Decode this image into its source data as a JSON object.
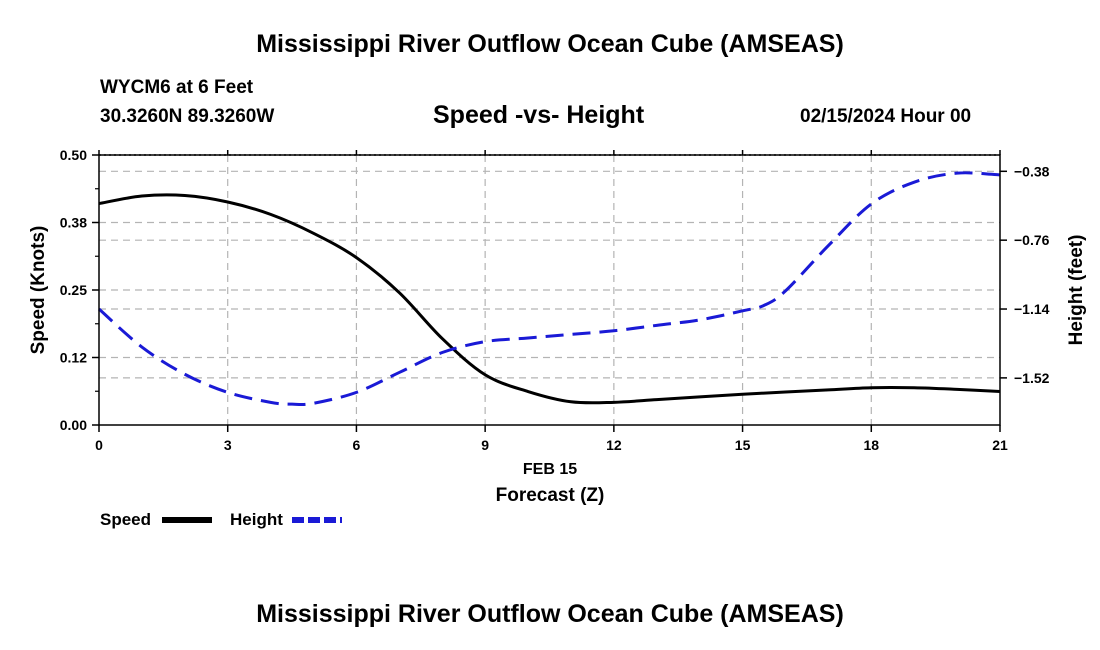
{
  "header": {
    "title": "Mississippi River Outflow Ocean Cube (AMSEAS)",
    "station": "WYCM6 at 6 Feet",
    "coords": "30.3260N  89.3260W",
    "subtitle": "Speed -vs- Height",
    "datetime": "02/15/2024 Hour 00"
  },
  "footer": {
    "title": "Mississippi River Outflow Ocean Cube (AMSEAS)"
  },
  "legend": {
    "speed_label": "Speed",
    "height_label": "Height"
  },
  "colors": {
    "speed": "#000000",
    "height": "#1a1ad6",
    "grid": "#b4b4b4"
  },
  "chart_data": {
    "type": "line",
    "title": "Speed -vs- Height",
    "xlabel": "Forecast (Z)",
    "date_label": "FEB 15",
    "ylabel": "Speed (Knots)",
    "y2label": "Height (feet)",
    "xlim": [
      0,
      21
    ],
    "ylim": [
      0,
      0.5
    ],
    "y2lim": [
      -1.78,
      -0.29
    ],
    "x_ticks": [
      0,
      3,
      6,
      9,
      12,
      15,
      18,
      21
    ],
    "x_tick_labels": [
      "0",
      "3",
      "6",
      "9",
      "12",
      "15",
      "18",
      "21"
    ],
    "y_ticks": [
      0,
      0.125,
      0.25,
      0.375,
      0.5
    ],
    "y_tick_labels": [
      "0.00",
      "0.12",
      "0.25",
      "0.38",
      "0.50"
    ],
    "y2_ticks": [
      -1.52,
      -1.14,
      -0.76,
      -0.38
    ],
    "y2_tick_labels": [
      "−1.52",
      "−1.14",
      "−0.76",
      "−0.38"
    ],
    "grid": true,
    "series": [
      {
        "name": "Speed",
        "axis": "left",
        "style": "solid",
        "x": [
          0,
          1,
          2,
          3,
          4,
          5,
          6,
          7,
          8,
          9,
          10,
          11,
          12,
          13,
          14,
          15,
          16,
          17,
          18,
          19,
          20,
          21
        ],
        "y": [
          0.41,
          0.424,
          0.425,
          0.413,
          0.39,
          0.355,
          0.31,
          0.245,
          0.16,
          0.093,
          0.062,
          0.043,
          0.042,
          0.047,
          0.052,
          0.057,
          0.061,
          0.065,
          0.069,
          0.069,
          0.066,
          0.062
        ]
      },
      {
        "name": "Height",
        "axis": "right",
        "style": "dashed",
        "x": [
          0,
          1,
          2,
          3,
          4,
          4.5,
          5,
          6,
          7,
          8,
          9,
          10,
          11,
          12,
          13,
          14,
          15,
          15.5,
          16,
          17,
          18,
          19,
          20,
          21
        ],
        "y": [
          -1.14,
          -1.35,
          -1.5,
          -1.6,
          -1.655,
          -1.665,
          -1.66,
          -1.6,
          -1.49,
          -1.38,
          -1.32,
          -1.3,
          -1.28,
          -1.26,
          -1.23,
          -1.2,
          -1.15,
          -1.12,
          -1.04,
          -0.79,
          -0.56,
          -0.44,
          -0.39,
          -0.4
        ]
      }
    ]
  }
}
